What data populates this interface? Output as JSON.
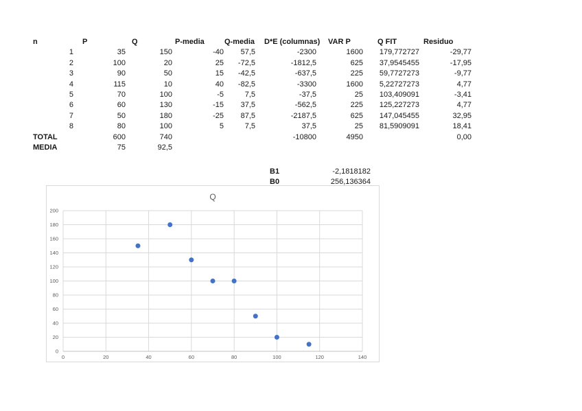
{
  "table": {
    "headers": [
      "n",
      "P",
      "Q",
      "P-media",
      "Q-media",
      "D*E (columnas)",
      "VAR P",
      "Q FIT",
      "Residuo"
    ],
    "rows": [
      [
        "1",
        "35",
        "150",
        "-40",
        "57,5",
        "-2300",
        "1600",
        "179,772727",
        "-29,77"
      ],
      [
        "2",
        "100",
        "20",
        "25",
        "-72,5",
        "-1812,5",
        "625",
        "37,9545455",
        "-17,95"
      ],
      [
        "3",
        "90",
        "50",
        "15",
        "-42,5",
        "-637,5",
        "225",
        "59,7727273",
        "-9,77"
      ],
      [
        "4",
        "115",
        "10",
        "40",
        "-82,5",
        "-3300",
        "1600",
        "5,22727273",
        "4,77"
      ],
      [
        "5",
        "70",
        "100",
        "-5",
        "7,5",
        "-37,5",
        "25",
        "103,409091",
        "-3,41"
      ],
      [
        "6",
        "60",
        "130",
        "-15",
        "37,5",
        "-562,5",
        "225",
        "125,227273",
        "4,77"
      ],
      [
        "7",
        "50",
        "180",
        "-25",
        "87,5",
        "-2187,5",
        "625",
        "147,045455",
        "32,95"
      ],
      [
        "8",
        "80",
        "100",
        "5",
        "7,5",
        "37,5",
        "25",
        "81,5909091",
        "18,41"
      ]
    ],
    "total_row": [
      "TOTAL",
      "600",
      "740",
      "",
      "",
      "-10800",
      "4950",
      "",
      "0,00"
    ],
    "media_row": [
      "MEDIA",
      "75",
      "92,5",
      "",
      "",
      "",
      "",
      "",
      ""
    ]
  },
  "coefficients": {
    "b1_label": "B1",
    "b1_value": "-2,1818182",
    "b0_label": "B0",
    "b0_value": "256,136364"
  },
  "chart_data": {
    "type": "scatter",
    "title": "Q",
    "x": [
      35,
      100,
      90,
      115,
      70,
      60,
      50,
      80
    ],
    "y": [
      150,
      20,
      50,
      10,
      100,
      130,
      180,
      100
    ],
    "xlim": [
      0,
      140
    ],
    "ylim": [
      0,
      200
    ],
    "x_ticks": [
      0,
      20,
      40,
      60,
      80,
      100,
      120,
      140
    ],
    "y_ticks": [
      0,
      20,
      40,
      60,
      80,
      100,
      120,
      140,
      160,
      180,
      200
    ],
    "grid": true,
    "legend": "none",
    "marker_color": "#4472C4",
    "gridline_color": "#d9d9d9",
    "axis_color": "#bfbfbf",
    "label_color": "#595959"
  }
}
